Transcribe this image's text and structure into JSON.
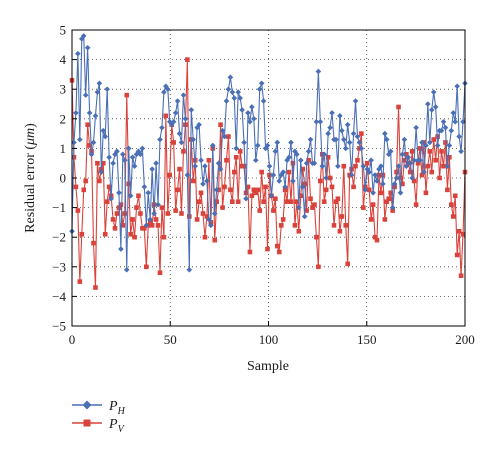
{
  "chart_data": {
    "type": "line",
    "title": "",
    "xlabel": "Sample",
    "ylabel": "Residual error (μm)",
    "xlim": [
      0,
      200
    ],
    "ylim": [
      -5,
      5
    ],
    "x_ticks": [
      0,
      50,
      100,
      150,
      200
    ],
    "y_ticks": [
      -5,
      -4,
      -3,
      -2,
      -1,
      0,
      1,
      2,
      3,
      4,
      5
    ],
    "x_tick_labels": [
      "0",
      "50",
      "100",
      "150",
      "200"
    ],
    "y_tick_labels": [
      "−5",
      "−4",
      "−3",
      "−2",
      "−1",
      "0",
      "1",
      "2",
      "3",
      "4",
      "5"
    ],
    "grid": true,
    "legend_position": "bottom-left",
    "series": [
      {
        "name": "P_H",
        "label_main": "P",
        "label_sub": "H",
        "color": "#4a6fb5",
        "marker": "diamond",
        "values": [
          -1.8,
          1.2,
          2.2,
          4.2,
          1.3,
          4.7,
          4.8,
          2.8,
          4.4,
          2.2,
          0.8,
          1.2,
          2.1,
          2.9,
          3.2,
          0.2,
          1.6,
          1.4,
          3.0,
          0.7,
          -0.7,
          0.5,
          0.8,
          0.9,
          -0.5,
          -2.4,
          0.8,
          0.6,
          -3.1,
          1.0,
          -0.6,
          0.7,
          0.4,
          0.8,
          0.9,
          0.8,
          1.0,
          -0.3,
          -1.6,
          -0.5,
          -1.4,
          0.3,
          -1.2,
          0.5,
          -0.9,
          1.3,
          1.7,
          2.9,
          3.1,
          3.0,
          1.9,
          1.8,
          1.9,
          2.2,
          2.6,
          1.5,
          1.2,
          2.8,
          2.0,
          0.1,
          -3.1,
          2.3,
          1.3,
          0.4,
          1.7,
          1.8,
          0.6,
          -0.2,
          0.4,
          -0.1,
          -1.4,
          -1.6,
          1.1,
          -1.2,
          -0.4,
          0.5,
          0.3,
          1.6,
          1.4,
          2.6,
          3.0,
          3.4,
          2.9,
          2.7,
          1.0,
          2.9,
          2.7,
          2.3,
          1.2,
          -0.7,
          2.2,
          1.9,
          2.4,
          2.0,
          0.6,
          1.1,
          3.0,
          3.2,
          2.6,
          1.0,
          1.1,
          0.4,
          -0.6,
          0.1,
          0.9,
          1.2,
          -0.1,
          0.1,
          0.2,
          -0.3,
          0.6,
          0.7,
          1.2,
          -0.1,
          0.9,
          0.8,
          -1.0,
          0.6,
          -0.3,
          -1.3,
          0.5,
          0.9,
          1.3,
          0.5,
          0.5,
          1.9,
          3.6,
          1.9,
          0.4,
          0.8,
          0.0,
          1.5,
          1.7,
          2.2,
          1.3,
          1.3,
          0.4,
          2.1,
          1.6,
          1.3,
          1.0,
          1.8,
          1.2,
          0.1,
          1.5,
          2.6,
          1.4,
          1.2,
          1.0,
          0.4,
          -0.4,
          0.3,
          0.2,
          0.6,
          -0.5,
          0.1,
          -0.1,
          0.3,
          0.4,
          -0.2,
          1.5,
          1.3,
          0.8,
          0.9,
          -1.0,
          -0.2,
          0.0,
          0.4,
          -0.5,
          0.8,
          1.3,
          0.4,
          0.7,
          0.5,
          0.0,
          0.6,
          1.7,
          0.6,
          0.6,
          1.2,
          0.2,
          1.1,
          2.5,
          1.2,
          2.3,
          2.9,
          2.4,
          1.1,
          1.6,
          1.6,
          1.9,
          1.7,
          0.4,
          1.1,
          1.6,
          2.2,
          1.9,
          3.1,
          1.4,
          0.9,
          1.9,
          3.2
        ]
      },
      {
        "name": "P_V",
        "label_main": "P",
        "label_sub": "V",
        "color": "#d9433b",
        "marker": "square",
        "values": [
          3.3,
          0.7,
          -0.3,
          -1.1,
          -3.5,
          -1.9,
          -0.4,
          -0.1,
          1.8,
          1.1,
          0.9,
          -2.2,
          -3.7,
          0.5,
          -0.1,
          0.3,
          0.5,
          -1.9,
          -0.8,
          -0.3,
          -0.6,
          -1.4,
          -1.7,
          -1.2,
          -1.0,
          -0.9,
          -1.6,
          -1.2,
          2.8,
          -0.2,
          -1.9,
          -1.4,
          -2.0,
          -1.0,
          -0.6,
          -1.2,
          -1.7,
          -1.7,
          -3.0,
          -1.6,
          -1.5,
          -1.6,
          -0.9,
          -1.4,
          -1.6,
          -3.2,
          -1.0,
          -2.0,
          2.1,
          -1.2,
          0.1,
          1.8,
          1.2,
          -1.1,
          -0.4,
          0.3,
          -1.2,
          0.9,
          1.8,
          4.0,
          -1.3,
          1.3,
          -0.1,
          0.6,
          -1.4,
          -0.8,
          -0.5,
          -1.2,
          -2.0,
          -1.3,
          0.6,
          -1.5,
          1.0,
          -2.1,
          -0.8,
          -0.4,
          1.8,
          -1.0,
          -0.3,
          0.6,
          1.4,
          -0.4,
          -0.8,
          0.2,
          0.7,
          -0.8,
          0.9,
          0.4,
          0.4,
          -0.5,
          -0.3,
          -2.5,
          -0.6,
          -0.4,
          -0.5,
          -0.4,
          -1.1,
          0.2,
          -0.8,
          -0.3,
          -2.4,
          0.1,
          -0.6,
          -1.1,
          -0.7,
          -2.3,
          -2.5,
          -1.6,
          -1.4,
          -0.4,
          -0.8,
          0.2,
          -0.8,
          0.5,
          -1.6,
          -0.8,
          -1.8,
          -0.6,
          0.3,
          -0.2,
          -1.1,
          0.6,
          -0.7,
          -1.0,
          -0.9,
          -2.0,
          -3.0,
          -0.1,
          0.8,
          -0.8,
          -0.4,
          0.7,
          0.0,
          -0.3,
          -1.6,
          -0.8,
          -0.7,
          -1.8,
          -1.3,
          0.4,
          -1.6,
          -2.9,
          0.1,
          0.3,
          -0.3,
          0.4,
          0.6,
          1.0,
          1.5,
          -1.0,
          -0.3,
          0.5,
          -0.4,
          -1.4,
          -0.9,
          -2.0,
          -2.1,
          0.1,
          -0.5,
          0.1,
          -1.4,
          -0.8,
          -0.7,
          -0.5,
          -1.1,
          -0.3,
          0.2,
          2.4,
          0.0,
          -0.2,
          0.6,
          0.8,
          0.5,
          0.2,
          0.9,
          -0.1,
          -0.9,
          0.5,
          1.0,
          0.1,
          1.2,
          -0.5,
          0.4,
          0.9,
          0.2,
          1.3,
          0.6,
          1.4,
          0.0,
          0.9,
          0.4,
          1.2,
          -0.4,
          0.7,
          -0.9,
          -1.3,
          -0.6,
          -2.6,
          -1.8,
          -3.3,
          -1.9,
          0.2
        ]
      }
    ]
  }
}
